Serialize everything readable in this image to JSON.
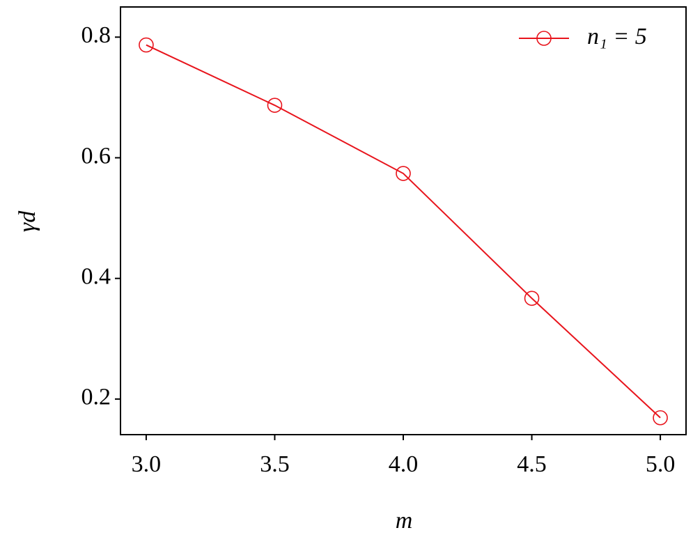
{
  "chart_data": {
    "type": "line",
    "xlabel": "m",
    "ylabel": "γd",
    "x": [
      3.0,
      3.5,
      4.0,
      4.5,
      5.0
    ],
    "series": [
      {
        "name": "n₁ = 5",
        "color": "#e8141c",
        "values": [
          0.787,
          0.687,
          0.574,
          0.367,
          0.169
        ]
      }
    ],
    "xlim": [
      2.9,
      5.1
    ],
    "xticks": [
      {
        "value": 3,
        "label": "3.0"
      },
      {
        "value": 3.5,
        "label": "3.5"
      },
      {
        "value": 4,
        "label": "4.0"
      },
      {
        "value": 4.5,
        "label": "4.5"
      },
      {
        "value": 5,
        "label": "5.0"
      }
    ],
    "ylim": [
      0.141,
      0.85
    ],
    "yticks": [
      0.2,
      0.4,
      0.6,
      0.8
    ],
    "grid": false,
    "legend": "upper right",
    "marker": "open-circle"
  }
}
